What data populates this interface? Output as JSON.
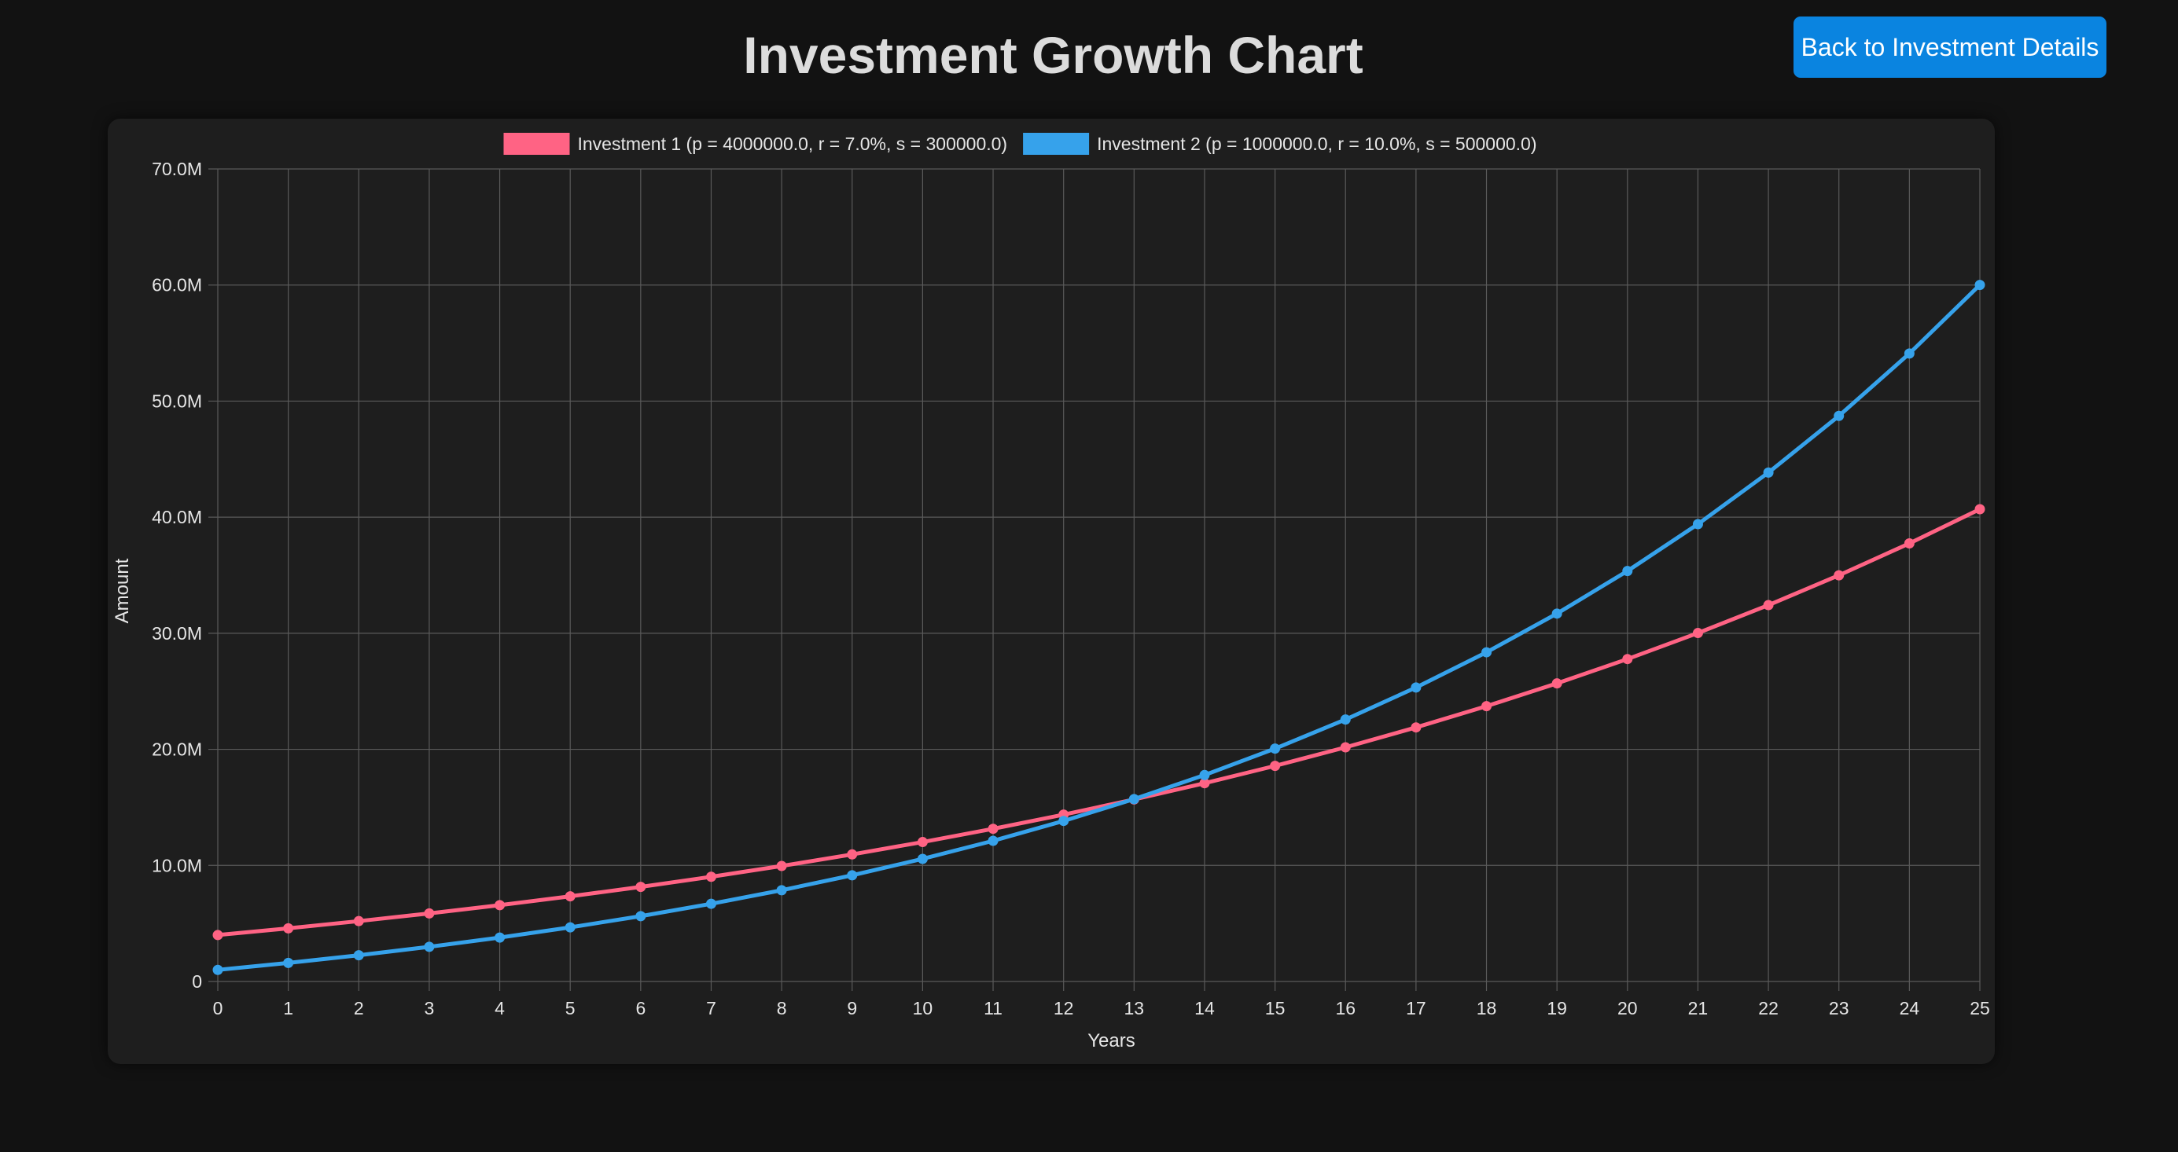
{
  "page": {
    "title": "Investment Growth Chart",
    "back_button_label": "Back to Investment Details"
  },
  "colors": {
    "background": "#121212",
    "card": "#1e1e1e",
    "button": "#0a84e0",
    "grid": "#5a5a5a"
  },
  "chart_data": {
    "type": "line",
    "xlabel": "Years",
    "ylabel": "Amount",
    "x": [
      0,
      1,
      2,
      3,
      4,
      5,
      6,
      7,
      8,
      9,
      10,
      11,
      12,
      13,
      14,
      15,
      16,
      17,
      18,
      19,
      20,
      21,
      22,
      23,
      24,
      25
    ],
    "ylim": [
      0,
      70000000
    ],
    "yticks": [
      {
        "value": 0,
        "label": "0"
      },
      {
        "value": 10000000,
        "label": "10.0M"
      },
      {
        "value": 20000000,
        "label": "20.0M"
      },
      {
        "value": 30000000,
        "label": "30.0M"
      },
      {
        "value": 40000000,
        "label": "40.0M"
      },
      {
        "value": 50000000,
        "label": "50.0M"
      },
      {
        "value": 60000000,
        "label": "60.0M"
      },
      {
        "value": 70000000,
        "label": "70.0M"
      }
    ],
    "grid": true,
    "legend_position": "top-center",
    "series": [
      {
        "name": "Investment 1 (p = 4000000.0, r = 7.0%, s = 300000.0)",
        "color": "#ff6384",
        "values": [
          4000000,
          4580000,
          5200600,
          5864642,
          6575167,
          7335429,
          8148909,
          9019333,
          9950686,
          10947234,
          12013540,
          13154488,
          14375302,
          15681573,
          17079283,
          18574833,
          20175071,
          21887326,
          23719439,
          25679800,
          27777386,
          30021803,
          32423329,
          34992962,
          37742469,
          40684442
        ]
      },
      {
        "name": "Investment 2 (p = 1000000.0, r = 10.0%, s = 500000.0)",
        "color": "#36a2eb",
        "values": [
          1000000,
          1600000,
          2260000,
          2986000,
          3784600,
          4663060,
          5629366,
          6692303,
          7861533,
          9147686,
          10562455,
          12118701,
          13830571,
          15713628,
          17784991,
          20063490,
          22569839,
          25326823,
          28359505,
          31695456,
          35365001,
          39401501,
          43841651,
          48725816,
          54098398,
          60008238
        ]
      }
    ]
  }
}
